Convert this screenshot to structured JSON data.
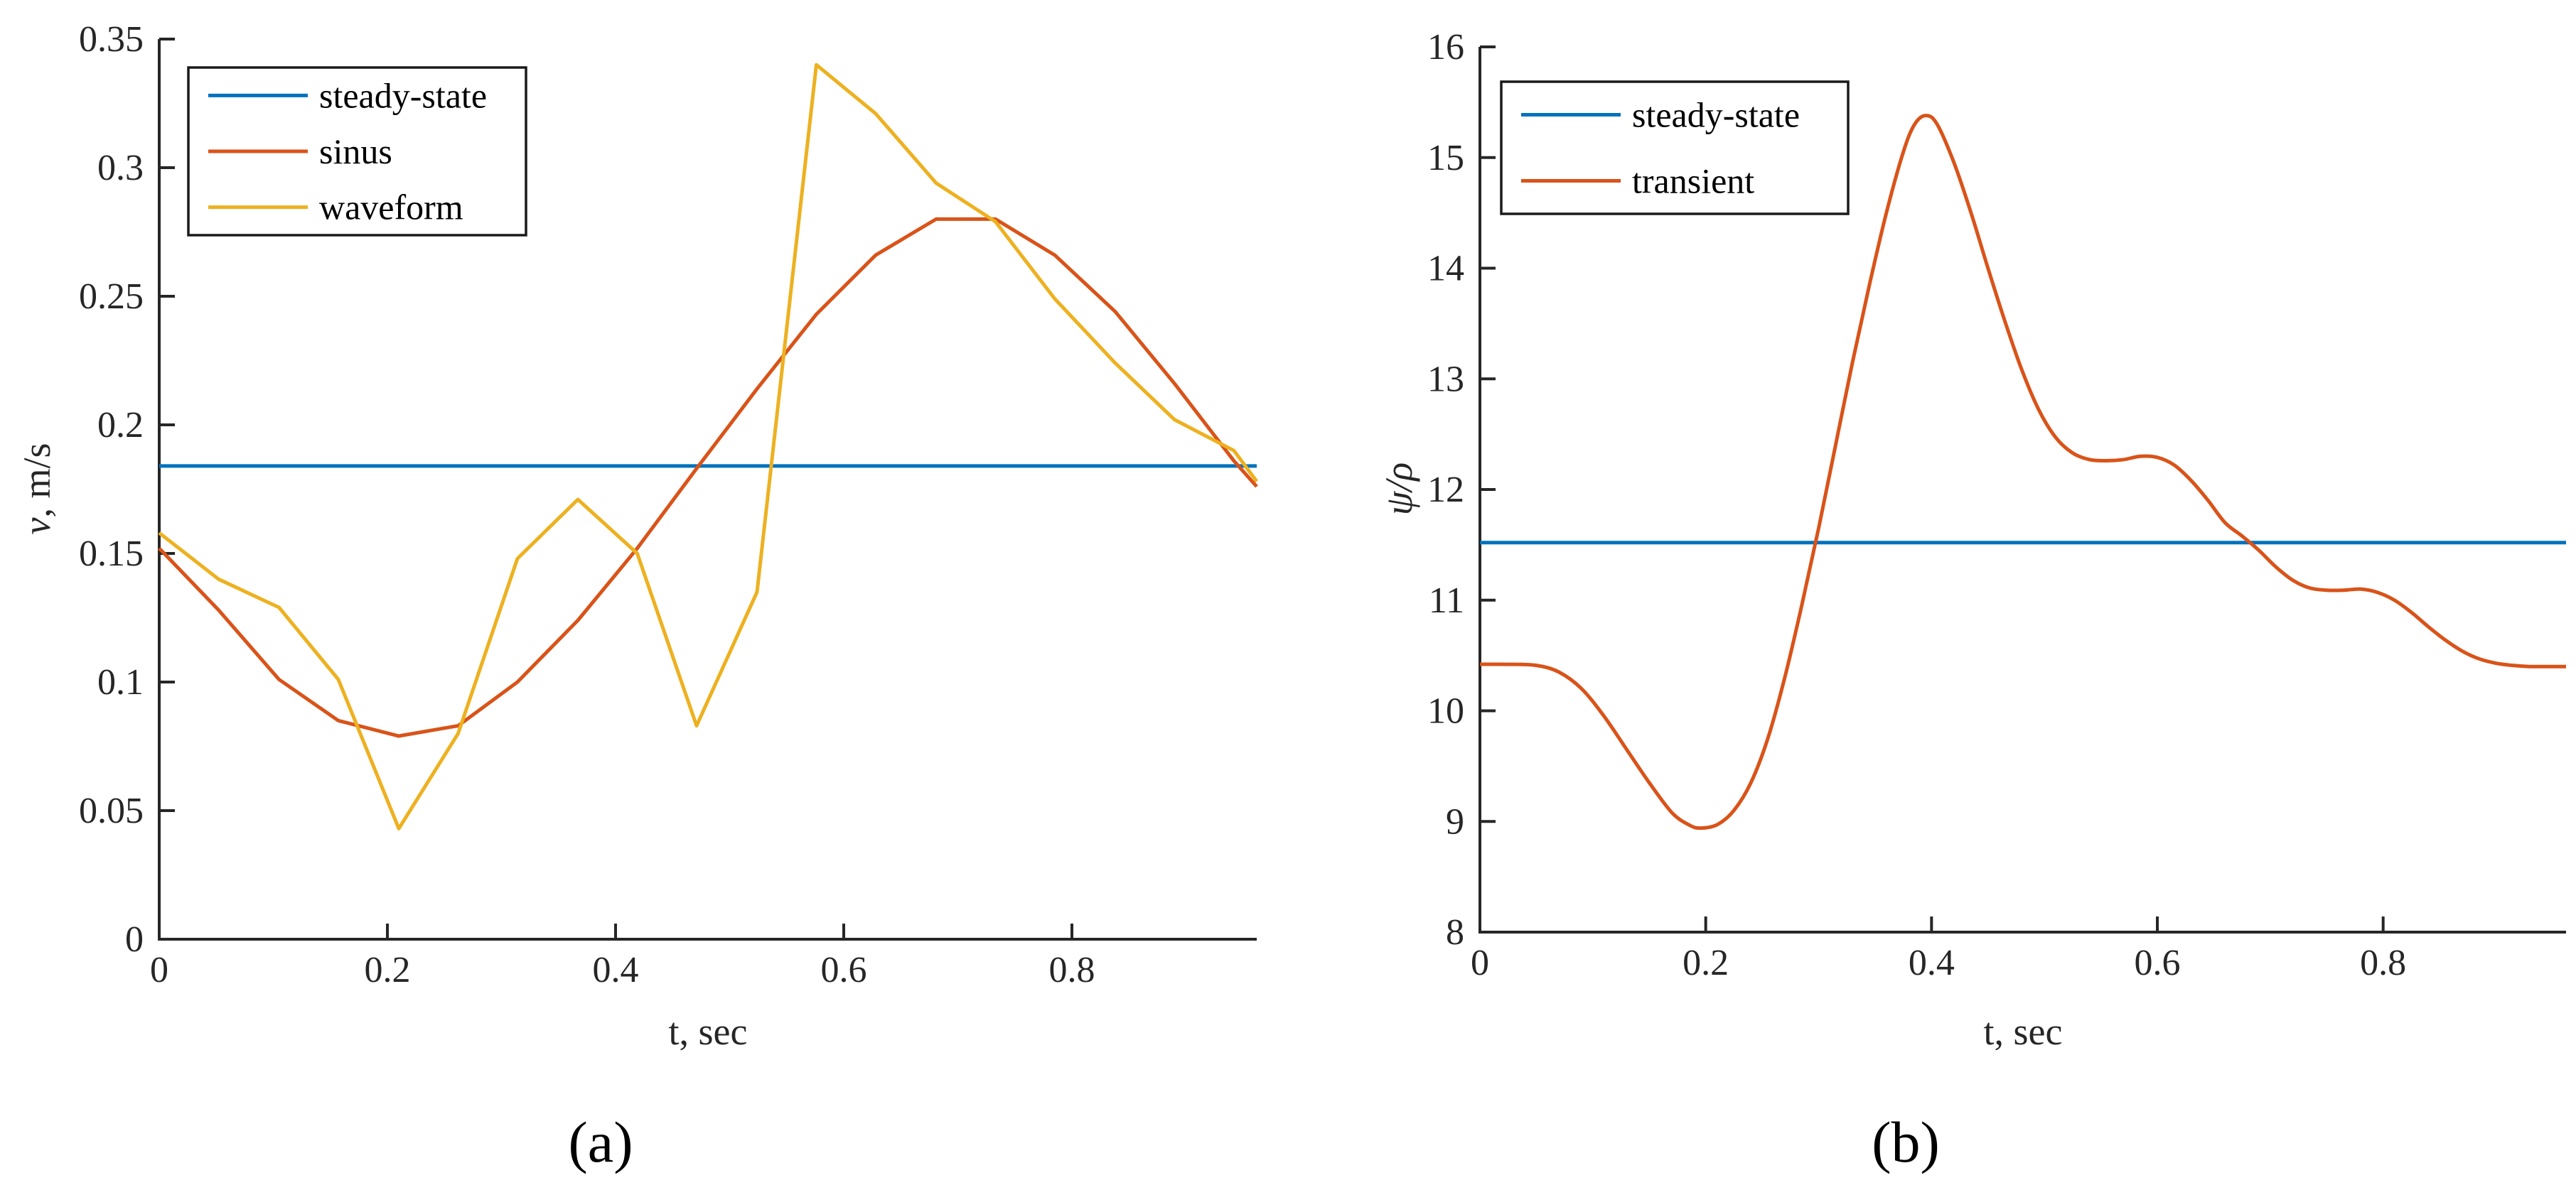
{
  "figure": {
    "background": "#ffffff",
    "caption_a": "(a)",
    "caption_b": "(b)"
  },
  "colors": {
    "blue": "#0072BD",
    "orange": "#D95319",
    "yellow": "#EDB120",
    "axis": "#262626",
    "tick_text": "#262626",
    "legend_text": "#000000",
    "legend_border": "#1a1a1a",
    "legend_bg": "#ffffff"
  },
  "chart_data": [
    {
      "id": "a",
      "type": "line",
      "title": "",
      "caption": "(a)",
      "xlabel": "t, sec",
      "ylabel": "v, m/s",
      "ylabel_italic": "v",
      "ylabel_rest": ", m/s",
      "xlim": [
        0,
        0.962
      ],
      "ylim": [
        0,
        0.35
      ],
      "grid": false,
      "xticks": [
        0,
        0.2,
        0.4,
        0.6,
        0.8
      ],
      "xtick_labels": [
        "0",
        "0.2",
        "0.4",
        "0.6",
        "0.8"
      ],
      "yticks": [
        0,
        0.05,
        0.1,
        0.15,
        0.2,
        0.25,
        0.3,
        0.35
      ],
      "ytick_labels": [
        "0",
        "0.05",
        "0.1",
        "0.15",
        "0.2",
        "0.25",
        "0.3",
        "0.35"
      ],
      "legend": {
        "position": "top-left",
        "entries": [
          "steady-state",
          "sinus",
          "waveform"
        ]
      },
      "steady_state_value": 0.184,
      "series": [
        {
          "name": "steady-state",
          "color_key": "blue",
          "smooth": false,
          "x": [
            0,
            0.962
          ],
          "y": [
            0.184,
            0.184
          ]
        },
        {
          "name": "sinus",
          "color_key": "orange",
          "smooth": false,
          "x": [
            0,
            0.052,
            0.105,
            0.157,
            0.21,
            0.262,
            0.314,
            0.367,
            0.419,
            0.471,
            0.524,
            0.576,
            0.628,
            0.681,
            0.733,
            0.785,
            0.838,
            0.89,
            0.942,
            0.962
          ],
          "y": [
            0.152,
            0.128,
            0.101,
            0.085,
            0.079,
            0.083,
            0.1,
            0.124,
            0.152,
            0.183,
            0.214,
            0.243,
            0.266,
            0.28,
            0.28,
            0.266,
            0.244,
            0.216,
            0.186,
            0.176
          ]
        },
        {
          "name": "waveform",
          "color_key": "yellow",
          "smooth": false,
          "x": [
            0,
            0.052,
            0.105,
            0.157,
            0.21,
            0.262,
            0.314,
            0.367,
            0.419,
            0.471,
            0.524,
            0.576,
            0.628,
            0.681,
            0.733,
            0.785,
            0.838,
            0.89,
            0.942,
            0.962
          ],
          "y": [
            0.158,
            0.14,
            0.129,
            0.101,
            0.043,
            0.08,
            0.148,
            0.171,
            0.15,
            0.083,
            0.135,
            0.34,
            0.321,
            0.294,
            0.279,
            0.249,
            0.224,
            0.202,
            0.19,
            0.178
          ]
        }
      ]
    },
    {
      "id": "b",
      "type": "line",
      "title": "",
      "caption": "(b)",
      "xlabel": "t, sec",
      "ylabel": "ψ/ρ",
      "ylabel_italic": "ψ/ρ",
      "ylabel_rest": "",
      "xlim": [
        0,
        0.962
      ],
      "ylim": [
        8,
        16
      ],
      "grid": false,
      "xticks": [
        0,
        0.2,
        0.4,
        0.6,
        0.8
      ],
      "xtick_labels": [
        "0",
        "0.2",
        "0.4",
        "0.6",
        "0.8"
      ],
      "yticks": [
        8,
        9,
        10,
        11,
        12,
        13,
        14,
        15,
        16
      ],
      "ytick_labels": [
        "8",
        "9",
        "10",
        "11",
        "12",
        "13",
        "14",
        "15",
        "16"
      ],
      "legend": {
        "position": "top-left",
        "entries": [
          "steady-state",
          "transient"
        ]
      },
      "steady_state_value": 11.52,
      "series": [
        {
          "name": "steady-state",
          "color_key": "blue",
          "smooth": false,
          "x": [
            0,
            0.962
          ],
          "y": [
            11.52,
            11.52
          ]
        },
        {
          "name": "transient",
          "color_key": "orange",
          "smooth": true,
          "x": [
            0,
            0.025,
            0.05,
            0.07,
            0.09,
            0.11,
            0.13,
            0.15,
            0.17,
            0.185,
            0.195,
            0.21,
            0.225,
            0.24,
            0.255,
            0.27,
            0.285,
            0.3,
            0.315,
            0.33,
            0.345,
            0.36,
            0.375,
            0.385,
            0.395,
            0.405,
            0.42,
            0.435,
            0.45,
            0.465,
            0.48,
            0.495,
            0.51,
            0.525,
            0.54,
            0.555,
            0.57,
            0.585,
            0.6,
            0.615,
            0.63,
            0.645,
            0.66,
            0.675,
            0.69,
            0.705,
            0.72,
            0.735,
            0.75,
            0.765,
            0.78,
            0.795,
            0.81,
            0.825,
            0.84,
            0.855,
            0.87,
            0.885,
            0.9,
            0.915,
            0.93,
            0.945,
            0.962
          ],
          "y": [
            10.42,
            10.42,
            10.41,
            10.35,
            10.2,
            9.95,
            9.65,
            9.35,
            9.08,
            8.97,
            8.94,
            8.97,
            9.1,
            9.35,
            9.75,
            10.3,
            10.95,
            11.65,
            12.4,
            13.15,
            13.85,
            14.5,
            15.05,
            15.3,
            15.38,
            15.3,
            14.95,
            14.5,
            14.0,
            13.52,
            13.08,
            12.72,
            12.47,
            12.33,
            12.27,
            12.26,
            12.27,
            12.3,
            12.29,
            12.22,
            12.08,
            11.9,
            11.7,
            11.58,
            11.45,
            11.3,
            11.18,
            11.11,
            11.09,
            11.09,
            11.1,
            11.07,
            11.0,
            10.89,
            10.76,
            10.64,
            10.54,
            10.47,
            10.43,
            10.41,
            10.4,
            10.4,
            10.4
          ]
        }
      ]
    }
  ]
}
